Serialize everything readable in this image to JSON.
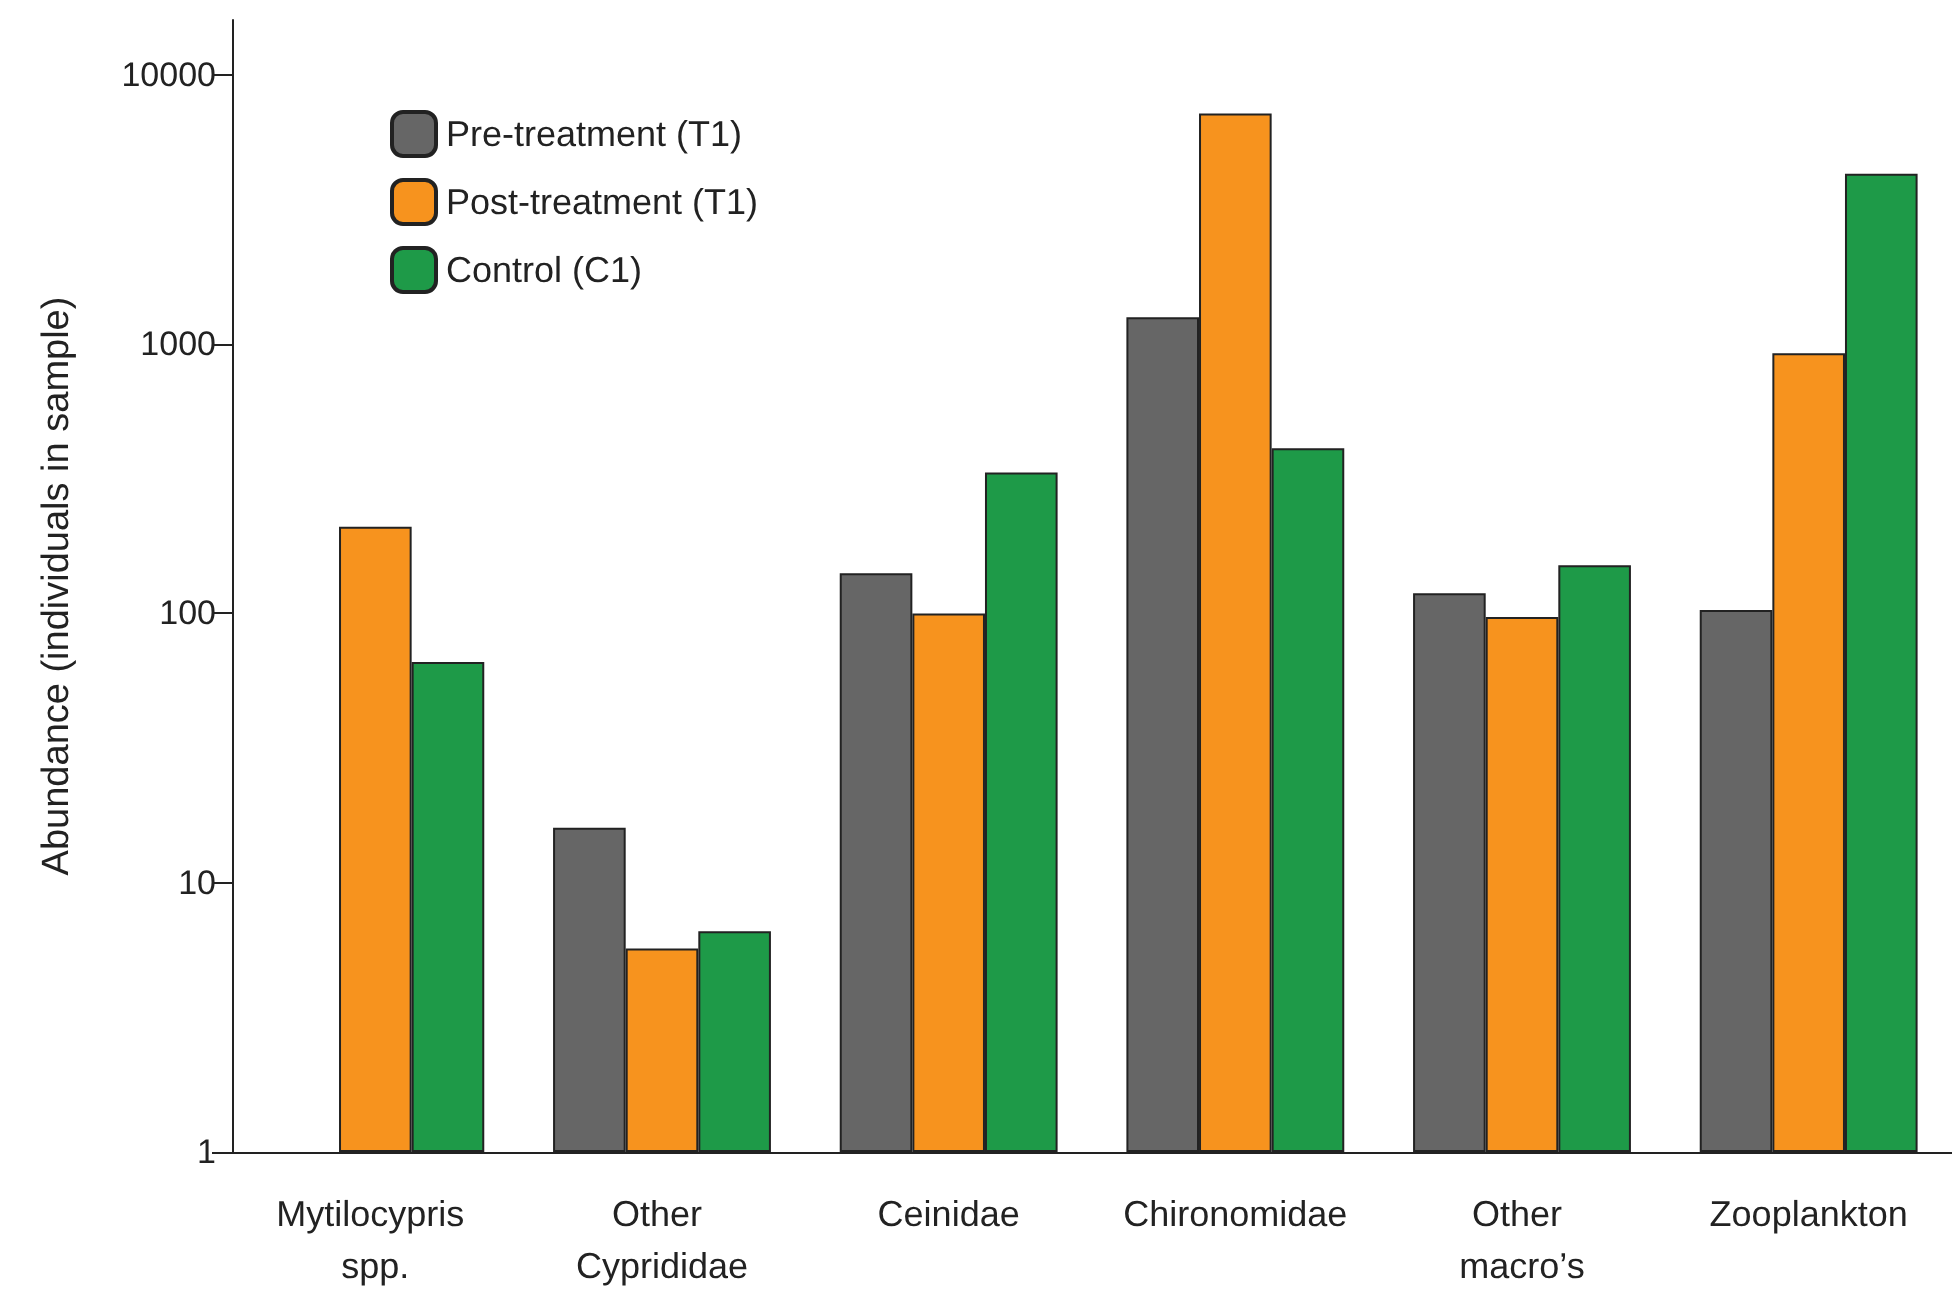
{
  "chart_data": {
    "type": "bar",
    "ylabel": "Abundance (individuals in sample)",
    "log": true,
    "categories": [
      "Mytilocypris spp.",
      "Other Cyprididae",
      "Ceinidae",
      "Chironomidae",
      "Other macro’s",
      "Zooplankton"
    ],
    "series": [
      {
        "name": "Pre-treatment (T1)",
        "color": "#666666",
        "values": [
          null,
          16,
          141,
          1260,
          119,
          103
        ]
      },
      {
        "name": "Post-treatment (T1)",
        "color": "#f7931e",
        "values": [
          210,
          5.7,
          100,
          7200,
          97,
          925
        ]
      },
      {
        "name": "Control (C1)",
        "color": "#1e9a48",
        "values": [
          66,
          6.6,
          334,
          411,
          151,
          4300
        ]
      }
    ],
    "ylim": [
      1,
      16000
    ],
    "yticks": [
      1,
      10,
      100,
      1000,
      10000
    ],
    "grid": false,
    "legend": "top left"
  }
}
